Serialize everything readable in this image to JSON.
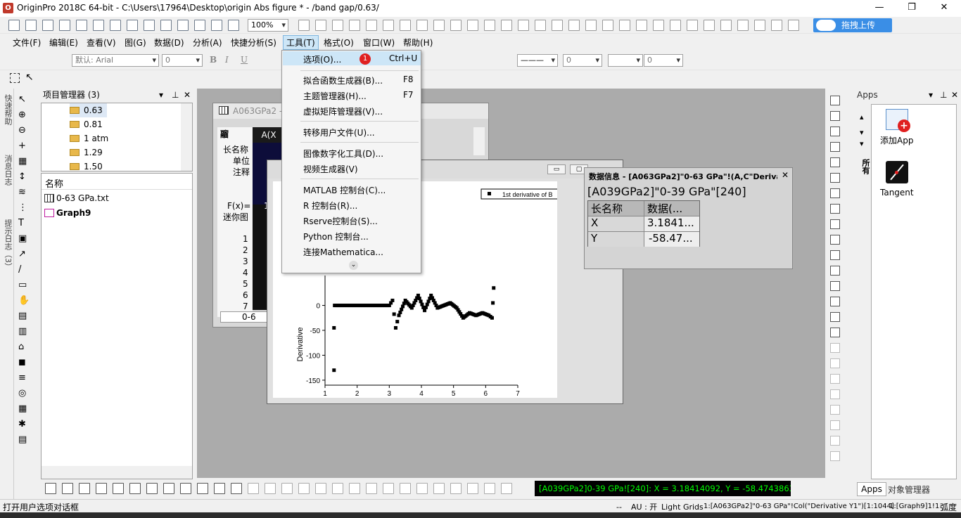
{
  "title": {
    "app": "OriginPro 2018C 64-bit - C:\\Users\\17964\\Desktop\\origin Abs figure * - /band gap/0.63/",
    "minimize": "—",
    "restore": "❐",
    "close": "✕"
  },
  "toolbar": {
    "zoom": "100%",
    "upload_label": "拖拽上传",
    "font_name": "默认: Arial",
    "font_size": "0",
    "line_width": "0",
    "fill_val": "0"
  },
  "menu": [
    "文件(F)",
    "编辑(E)",
    "查看(V)",
    "图(G)",
    "数据(D)",
    "分析(A)",
    "快捷分析(S)",
    "工具(T)",
    "格式(O)",
    "窗口(W)",
    "帮助(H)"
  ],
  "tools_menu": {
    "items": [
      {
        "label": "选项(O)...",
        "shortcut": "Ctrl+U",
        "badge": "1"
      },
      {
        "label": "拟合函数生成器(B)...",
        "shortcut": "F8"
      },
      {
        "label": "主题管理器(H)...",
        "shortcut": "F7"
      },
      {
        "label": "虚拟矩阵管理器(V)..."
      },
      {
        "label": "转移用户文件(U)..."
      },
      {
        "label": "图像数字化工具(D)..."
      },
      {
        "label": "视频生成器(V)"
      },
      {
        "label": "MATLAB 控制台(C)..."
      },
      {
        "label": "R 控制台(R)..."
      },
      {
        "label": "Rserve控制台(S)..."
      },
      {
        "label": "Python 控制台..."
      },
      {
        "label": "连接Mathematica..."
      }
    ]
  },
  "side_tabs": {
    "quick_help": "快速帮助",
    "message_log": "消息日志",
    "hint_log": "提示日志（3）"
  },
  "project_manager": {
    "title": "项目管理器 (3)",
    "folders": [
      "0.63",
      "0.81",
      "1 atm",
      "1.29",
      "1.50"
    ],
    "list_header": "名称",
    "files": [
      {
        "name": "0-63 GPa.txt",
        "type": "sheet"
      },
      {
        "name": "Graph9",
        "type": "graph"
      }
    ]
  },
  "worksheet": {
    "title": "A063GPa2 -",
    "col_header": "A(X",
    "row_labels": [
      "长名称",
      "单位",
      "注释",
      "F(x)=",
      "迷你图"
    ],
    "fx_val": "1",
    "rows": [
      "1",
      "2",
      "3",
      "4",
      "5",
      "6",
      "7"
    ],
    "tab": "0-6"
  },
  "graph": {
    "legend": "1st derivative of B",
    "xlabel": "A",
    "ylabel": "Derivative"
  },
  "chart_data": {
    "type": "scatter",
    "title": "",
    "xlabel": "A",
    "ylabel": "Derivative",
    "xlim": [
      1,
      7
    ],
    "ylim": [
      -160,
      60
    ],
    "xticks": [
      "1",
      "2",
      "3",
      "4",
      "5",
      "6",
      "7"
    ],
    "yticks": [
      "0",
      "-50",
      "-100",
      "-150"
    ],
    "series": [
      {
        "name": "1st derivative of B",
        "x": [
          1.28,
          1.28,
          1.3,
          1.5,
          2.0,
          2.5,
          3.0,
          3.1,
          3.2,
          3.3,
          3.5,
          3.7,
          3.9,
          4.1,
          4.3,
          4.5,
          4.7,
          4.9,
          5.1,
          5.3,
          5.5,
          5.7,
          5.9,
          6.1,
          6.2,
          6.25
        ],
        "y": [
          -130,
          -45,
          0,
          0,
          0,
          0,
          0,
          10,
          -45,
          -20,
          10,
          -5,
          20,
          -10,
          20,
          -5,
          0,
          5,
          -5,
          -25,
          -15,
          -20,
          -15,
          -20,
          -25,
          35
        ]
      }
    ]
  },
  "data_info": {
    "title": "数据信息 - [A063GPa2]\"0-63 GPa\"!(A,C\"Derivativ...",
    "source": "[A039GPa2]\"0-39 GPa\"[240]",
    "headers": [
      "长名称",
      "数据(..."
    ],
    "rows": [
      {
        "name": "X",
        "value": "3.1841..."
      },
      {
        "name": "Y",
        "value": "-58.47..."
      }
    ]
  },
  "apps": {
    "title": "Apps",
    "items": [
      "添加App",
      "Tangent"
    ],
    "tabs": [
      "Apps",
      "对象管理器"
    ],
    "vertical_tab": "所有"
  },
  "status": {
    "left": "打开用户选项对话框",
    "readout": "[A039GPa2]0-39 GPa![240]:  X = 3.18414092, Y = -58.4743863",
    "dashes": "--",
    "au": "AU : 开",
    "grids": "Light Grids",
    "col": "1:[A063GPa2]\"0-63 GPa\"!Col(\"Derivative Y1\")[1:1044]",
    "graph": "1:[Graph9]1!1",
    "unit": "弧度"
  },
  "colors": {
    "accent": "#0078d7",
    "readout_bg": "#000000",
    "readout_fg": "#00ff00",
    "badge": "#e02020",
    "highlight": "#cde6f7"
  }
}
